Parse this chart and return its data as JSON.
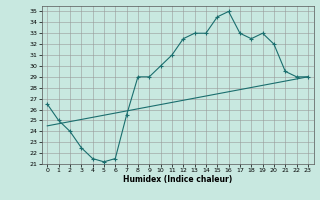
{
  "title": "",
  "xlabel": "Humidex (Indice chaleur)",
  "bg_color": "#c8e8e0",
  "grid_color": "#999999",
  "line_color": "#1a6e6e",
  "xlim": [
    -0.5,
    23.5
  ],
  "ylim": [
    21,
    35.5
  ],
  "xticks": [
    0,
    1,
    2,
    3,
    4,
    5,
    6,
    7,
    8,
    9,
    10,
    11,
    12,
    13,
    14,
    15,
    16,
    17,
    18,
    19,
    20,
    21,
    22,
    23
  ],
  "yticks": [
    21,
    22,
    23,
    24,
    25,
    26,
    27,
    28,
    29,
    30,
    31,
    32,
    33,
    34,
    35
  ],
  "curve1_x": [
    0,
    1,
    2,
    3,
    4,
    5,
    6,
    7,
    8,
    9,
    10,
    11,
    12,
    13,
    14,
    15,
    16,
    17,
    18,
    19,
    20,
    21,
    22,
    23
  ],
  "curve1_y": [
    26.5,
    25.0,
    24.0,
    22.5,
    21.5,
    21.2,
    21.5,
    25.5,
    29.0,
    29.0,
    30.0,
    31.0,
    32.5,
    33.0,
    33.0,
    34.5,
    35.0,
    33.0,
    32.5,
    33.0,
    32.0,
    29.5,
    29.0,
    29.0
  ],
  "curve2_x": [
    0,
    23
  ],
  "curve2_y": [
    24.5,
    29.0
  ]
}
